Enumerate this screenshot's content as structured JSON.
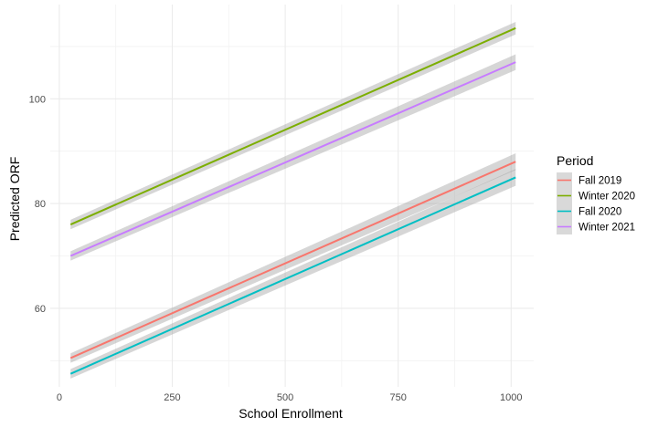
{
  "chart_data": {
    "type": "line",
    "xlabel": "School Enrollment",
    "ylabel": "Predicted ORF",
    "xlim": [
      -20,
      1050
    ],
    "ylim": [
      45,
      118
    ],
    "x_ticks": [
      0,
      250,
      500,
      750,
      1000
    ],
    "y_ticks": [
      60,
      80,
      100
    ],
    "grid": true,
    "legend": {
      "title": "Period",
      "position": "right"
    },
    "confidence_band": true,
    "series": [
      {
        "name": "Fall 2019",
        "color": "#F8766D",
        "x": [
          25,
          1010
        ],
        "y": [
          50.5,
          88.0
        ],
        "ci_halfwidth": [
          0.9,
          1.6
        ]
      },
      {
        "name": "Winter 2020",
        "color": "#7CAE00",
        "x": [
          25,
          1010
        ],
        "y": [
          76.0,
          113.5
        ],
        "ci_halfwidth": [
          0.9,
          1.2
        ]
      },
      {
        "name": "Fall 2020",
        "color": "#00BFC4",
        "x": [
          25,
          1010
        ],
        "y": [
          47.5,
          85.0
        ],
        "ci_halfwidth": [
          0.9,
          1.6
        ]
      },
      {
        "name": "Winter 2021",
        "color": "#C77CFF",
        "x": [
          25,
          1010
        ],
        "y": [
          70.0,
          107.0
        ],
        "ci_halfwidth": [
          0.9,
          1.5
        ]
      }
    ]
  }
}
